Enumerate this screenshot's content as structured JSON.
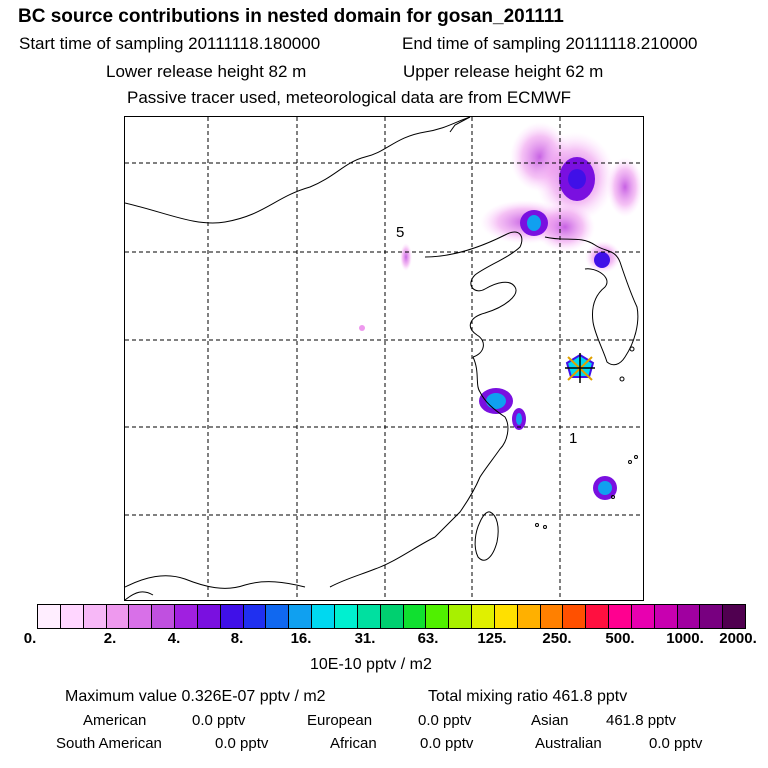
{
  "header": {
    "title": "BC  source contributions in nested domain for gosan_201111",
    "start_label": "Start time of sampling 20111118.180000",
    "end_label": "End time of sampling 20111118.210000",
    "lower_release": "Lower release height   82 m",
    "upper_release": "Upper release height   62 m",
    "tracer_note": "Passive tracer used, meteorological data are from ECMWF"
  },
  "map": {
    "labels": [
      "5",
      "1"
    ],
    "land_outline_color": "#000000",
    "grid_color": "#000000"
  },
  "colorbar": {
    "colors": [
      "#ffeeff",
      "#ffd6ff",
      "#f7b8f7",
      "#ee99ee",
      "#d870e8",
      "#c050e0",
      "#a020e0",
      "#7a10e0",
      "#4010e8",
      "#2030f0",
      "#1068f0",
      "#10a0f0",
      "#00d8f0",
      "#00f0d0",
      "#00e0a0",
      "#00d070",
      "#10e030",
      "#50f000",
      "#a8f000",
      "#e0f000",
      "#ffe000",
      "#ffb000",
      "#ff8000",
      "#ff5000",
      "#ff1040",
      "#ff0090",
      "#e800b0",
      "#c800b0",
      "#a000a0",
      "#780080",
      "#500050"
    ],
    "tick_labels": [
      "0.",
      "2.",
      "4.",
      "8.",
      "16.",
      "31.",
      "63.",
      "125.",
      "250.",
      "500.",
      "1000.",
      "2000."
    ],
    "unit_label": "10E-10 pptv / m2"
  },
  "stats": {
    "maximum_value": "Maximum value  0.326E-07 pptv / m2",
    "total_mixing": "Total mixing ratio      461.8 pptv",
    "american": {
      "name": "American",
      "value": "0.0 pptv"
    },
    "european": {
      "name": "European",
      "value": "0.0 pptv"
    },
    "asian": {
      "name": "Asian",
      "value": "461.8 pptv"
    },
    "south_american": {
      "name": "South American",
      "value": "0.0 pptv"
    },
    "african": {
      "name": "African",
      "value": "0.0 pptv"
    },
    "australian": {
      "name": "Australian",
      "value": "0.0 pptv"
    }
  }
}
